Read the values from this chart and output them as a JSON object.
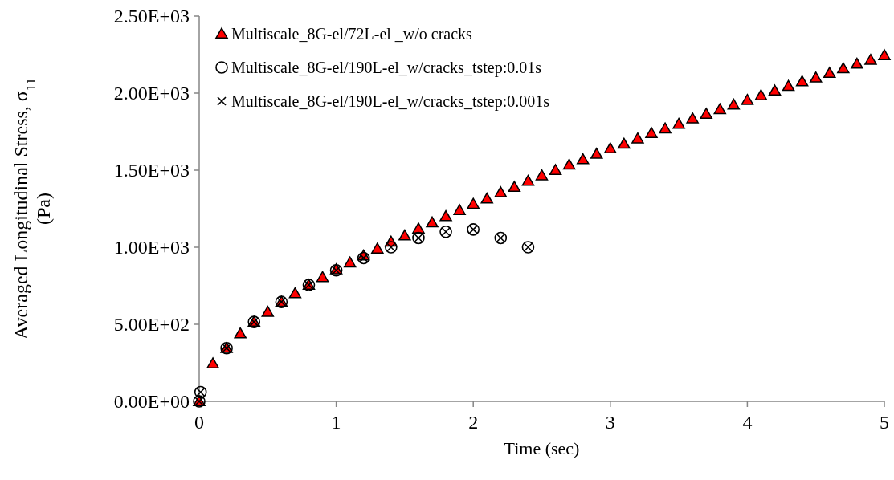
{
  "chart_data": {
    "type": "scatter",
    "xlabel": "Time (sec)",
    "ylabel": "Averaged Longitudinal Stress, σ$_{11}$ (Pa)",
    "xlim": [
      0,
      5
    ],
    "xticks": [
      0,
      1,
      2,
      3,
      4,
      5
    ],
    "ylim": [
      0,
      2500
    ],
    "yticks": [
      {
        "value": 0,
        "label": "0.00E+00"
      },
      {
        "value": 500,
        "label": "5.00E+02"
      },
      {
        "value": 1000,
        "label": "1.00E+03"
      },
      {
        "value": 1500,
        "label": "1.50E+03"
      },
      {
        "value": 2000,
        "label": "2.00E+03"
      },
      {
        "value": 2500,
        "label": "2.50E+03"
      }
    ],
    "grid": false,
    "legend": "top left",
    "series": [
      {
        "name": "Multiscale_8G-el/72L-el _w/o cracks",
        "color": "#ff0000",
        "marker": "triangle",
        "x": [
          0,
          0.1,
          0.2,
          0.3,
          0.4,
          0.5,
          0.6,
          0.7,
          0.8,
          0.9,
          1,
          1.1,
          1.2,
          1.3,
          1.4,
          1.5,
          1.6,
          1.7,
          1.8,
          1.9,
          2,
          2.1,
          2.2,
          2.3,
          2.4,
          2.5,
          2.6,
          2.7,
          2.8,
          2.9,
          3,
          3.1,
          3.2,
          3.3,
          3.4,
          3.5,
          3.6,
          3.7,
          3.8,
          3.9,
          4,
          4.1,
          4.2,
          4.3,
          4.4,
          4.5,
          4.6,
          4.7,
          4.8,
          4.9,
          5
        ],
        "values": [
          0,
          245,
          345,
          440,
          515,
          580,
          645,
          700,
          755,
          805,
          855,
          900,
          945,
          990,
          1035,
          1075,
          1120,
          1160,
          1200,
          1240,
          1280,
          1315,
          1355,
          1390,
          1430,
          1465,
          1500,
          1535,
          1570,
          1605,
          1640,
          1670,
          1705,
          1740,
          1770,
          1800,
          1835,
          1865,
          1895,
          1925,
          1955,
          1985,
          2015,
          2045,
          2075,
          2100,
          2130,
          2160,
          2190,
          2215,
          2245
        ]
      },
      {
        "name": "Multiscale_8G-el/190L-el_w/cracks_tstep:0.01s",
        "color": "#000000",
        "marker": "circle",
        "x": [
          0,
          0.01,
          0.2,
          0.4,
          0.6,
          0.8,
          1,
          1.2,
          1.4,
          1.6,
          1.8,
          2,
          2.2,
          2.4
        ],
        "values": [
          0,
          60,
          345,
          515,
          645,
          755,
          850,
          930,
          1000,
          1060,
          1100,
          1115,
          1060,
          1000
        ]
      },
      {
        "name": "Multiscale_8G-el/190L-el_w/cracks_tstep:0.001s",
        "color": "#000000",
        "marker": "cross",
        "x": [
          0,
          0.01,
          0.2,
          0.4,
          0.6,
          0.8,
          1,
          1.2,
          1.4,
          1.6,
          1.8,
          2,
          2.2,
          2.4
        ],
        "values": [
          0,
          60,
          345,
          515,
          645,
          755,
          850,
          930,
          1000,
          1060,
          1100,
          1115,
          1060,
          1000
        ]
      }
    ]
  }
}
